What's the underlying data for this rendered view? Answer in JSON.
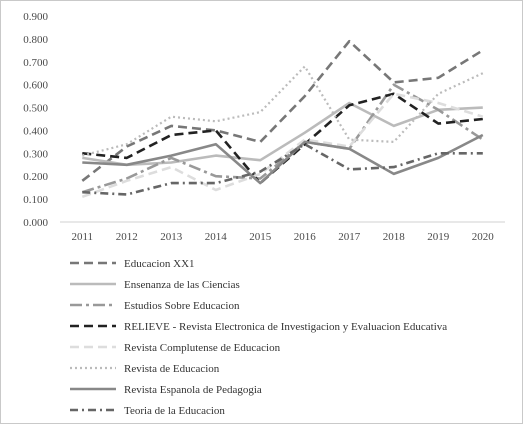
{
  "chart_data": {
    "type": "line",
    "title": "",
    "xlabel": "",
    "ylabel": "",
    "x": [
      "2011",
      "2012",
      "2013",
      "2014",
      "2015",
      "2016",
      "2017",
      "2018",
      "2019",
      "2020"
    ],
    "ylim": [
      0,
      0.9
    ],
    "yticks": [
      "0.000",
      "0.100",
      "0.200",
      "0.300",
      "0.400",
      "0.500",
      "0.600",
      "0.700",
      "0.800",
      "0.900"
    ],
    "grid": false,
    "legend_position": "bottom",
    "series": [
      {
        "name": "Educacion XX1",
        "color": "#777777",
        "dash": "long-dash",
        "values": [
          0.18,
          0.33,
          0.42,
          0.4,
          0.35,
          0.55,
          0.79,
          0.61,
          0.63,
          0.75
        ]
      },
      {
        "name": "Ensenanza de las Ciencias",
        "color": "#bbbbbb",
        "dash": "solid",
        "values": [
          0.28,
          0.25,
          0.26,
          0.29,
          0.27,
          0.39,
          0.52,
          0.42,
          0.49,
          0.5
        ]
      },
      {
        "name": "Estudios Sobre Educacion",
        "color": "#999999",
        "dash": "dash",
        "values": [
          0.13,
          0.19,
          0.28,
          0.2,
          0.19,
          0.35,
          0.32,
          0.6,
          0.49,
          0.36
        ]
      },
      {
        "name": "RELIEVE - Revista Electronica de Investigacion y Evaluacion Educativa",
        "color": "#222222",
        "dash": "long-dash",
        "values": [
          0.3,
          0.28,
          0.38,
          0.4,
          0.17,
          0.34,
          0.51,
          0.56,
          0.43,
          0.45
        ]
      },
      {
        "name": "Revista Complutense de Educacion",
        "color": "#dddddd",
        "dash": "long-dash",
        "values": [
          0.11,
          0.18,
          0.24,
          0.14,
          0.21,
          0.36,
          0.33,
          0.56,
          0.52,
          0.46
        ]
      },
      {
        "name": "Revista de Educacion",
        "color": "#bbbbbb",
        "dash": "dot",
        "values": [
          0.29,
          0.34,
          0.46,
          0.44,
          0.48,
          0.68,
          0.36,
          0.35,
          0.56,
          0.65
        ]
      },
      {
        "name": "Revista Espanola de Pedagogia",
        "color": "#888888",
        "dash": "solid",
        "values": [
          0.26,
          0.25,
          0.29,
          0.34,
          0.17,
          0.35,
          0.32,
          0.21,
          0.28,
          0.38
        ]
      },
      {
        "name": "Teoria de la Educacion",
        "color": "#666666",
        "dash": "dash-dot",
        "values": [
          0.13,
          0.12,
          0.17,
          0.17,
          0.22,
          0.34,
          0.23,
          0.24,
          0.3,
          0.3
        ]
      }
    ]
  }
}
